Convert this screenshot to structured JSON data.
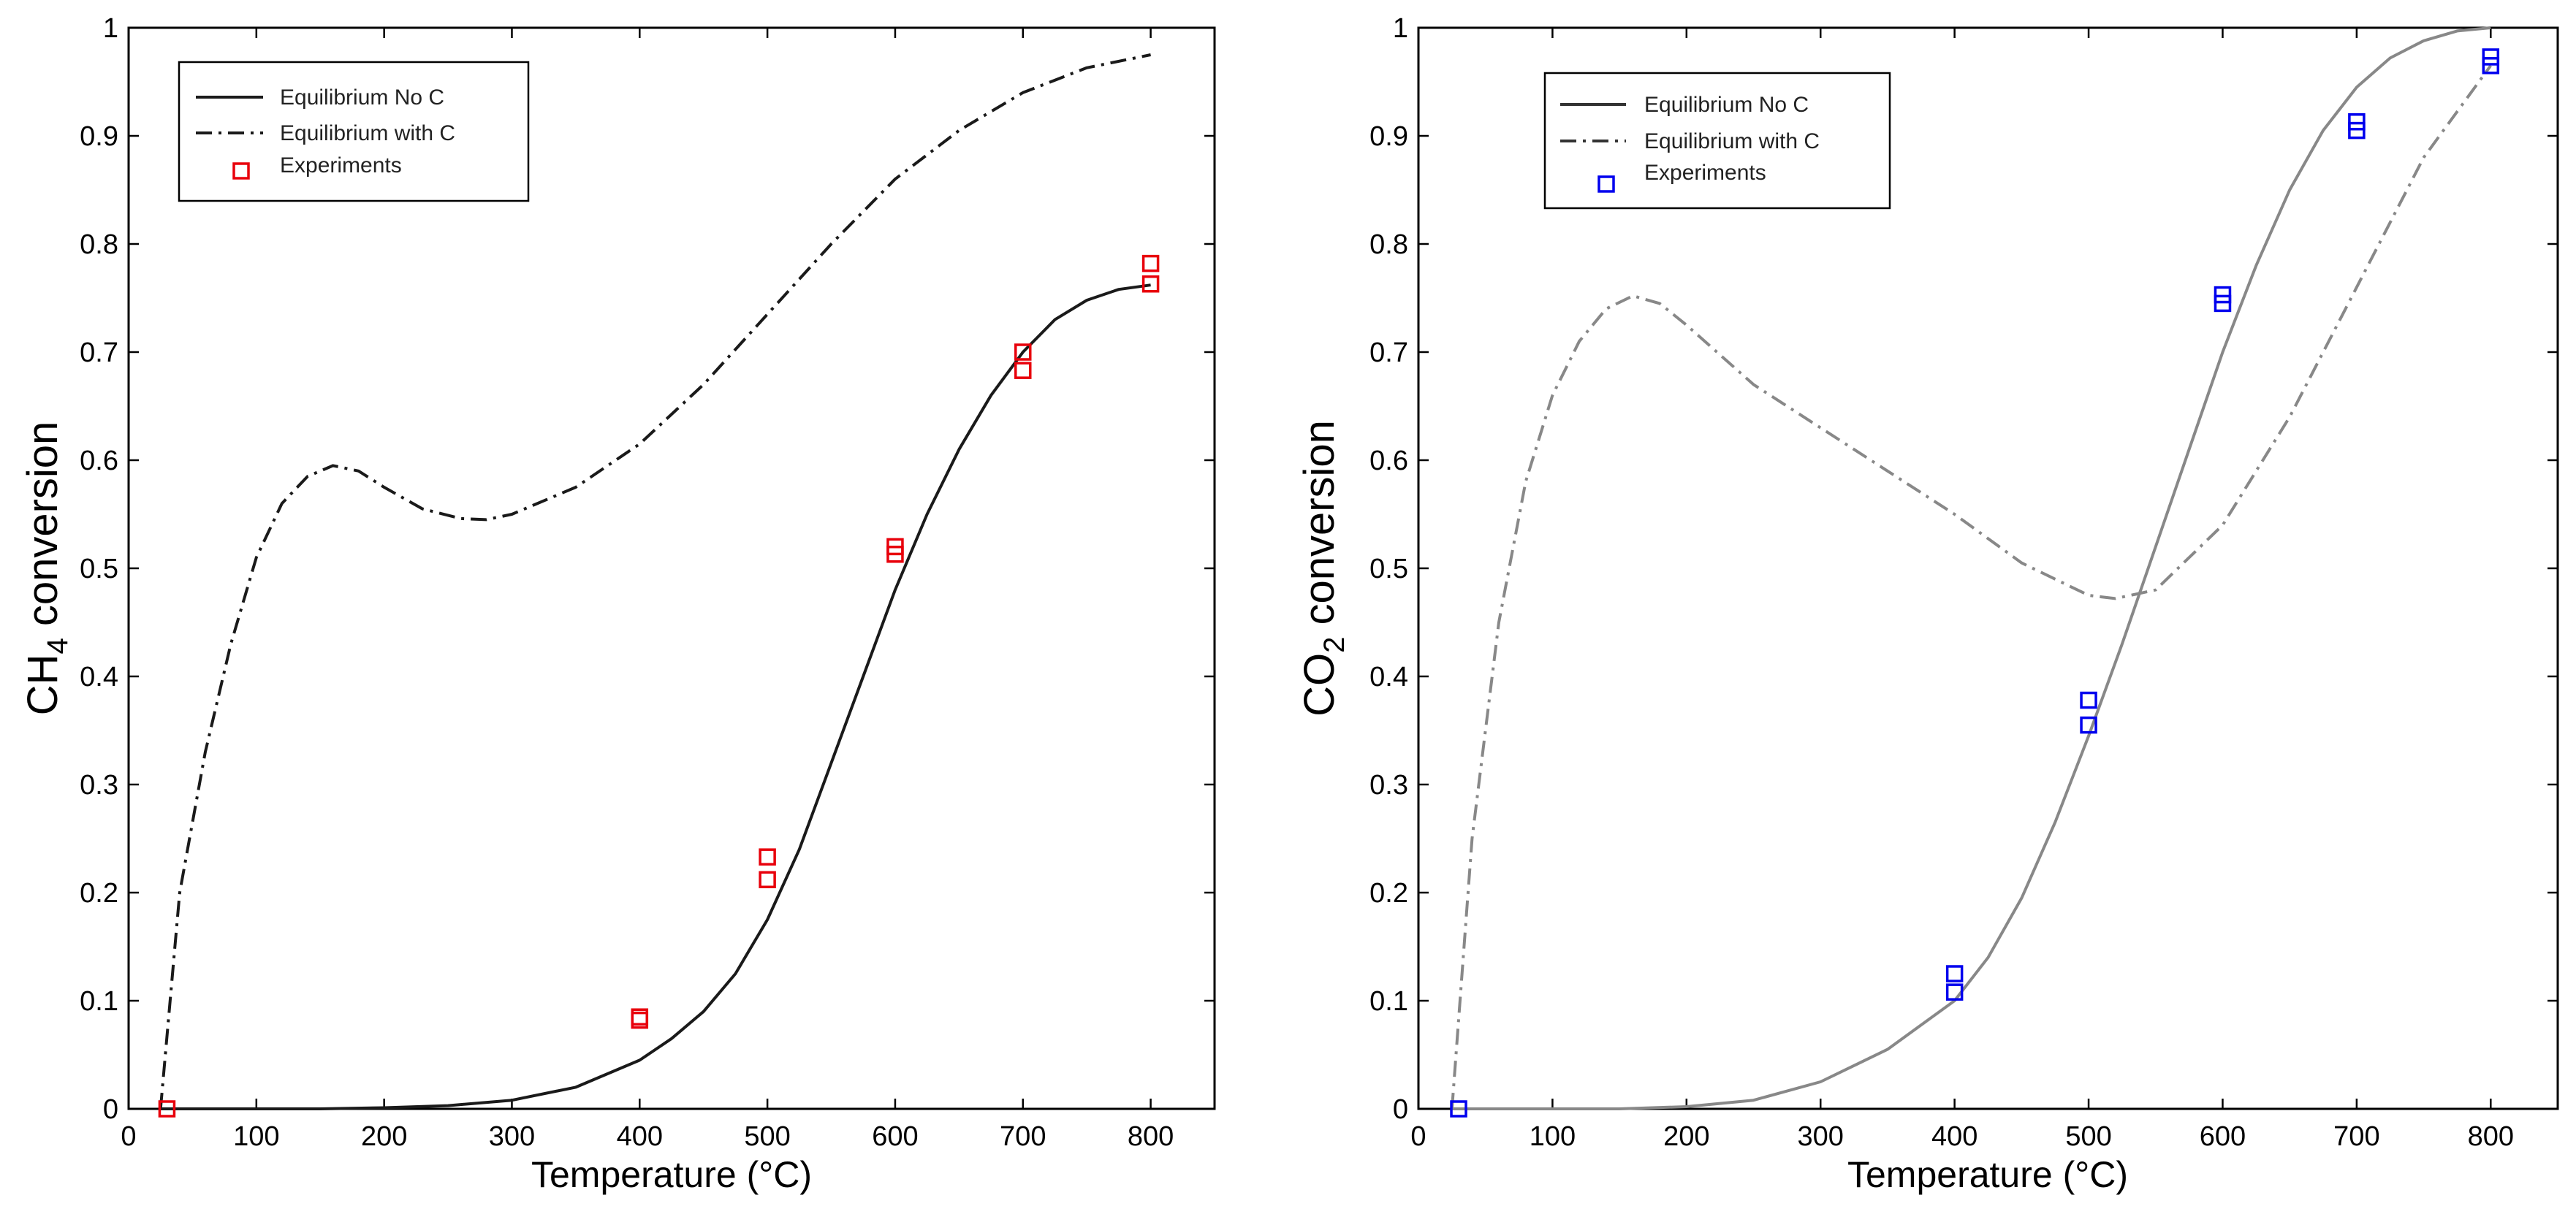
{
  "chart_data": [
    {
      "type": "line",
      "panel": "left",
      "title": "",
      "xlabel": "Temperature (°C)",
      "ylabel_main": "CH",
      "ylabel_sub": "4",
      "ylabel_rest": " conversion",
      "xlim": [
        0,
        850
      ],
      "ylim": [
        0,
        1
      ],
      "xticks": [
        "0",
        "100",
        "200",
        "300",
        "400",
        "500",
        "600",
        "700",
        "800"
      ],
      "yticks": [
        "0",
        "0.1",
        "0.2",
        "0.3",
        "0.4",
        "0.5",
        "0.6",
        "0.7",
        "0.8",
        "0.9",
        "1"
      ],
      "grid": false,
      "legend": [
        "Equilibrium No C",
        "Equilibrium with C",
        "Experiments"
      ],
      "legend_placement": "top-left",
      "marker_color": "#e8000b",
      "series": [
        {
          "name": "Equilibrium No C",
          "style": "solid",
          "color": "#1a1a1a",
          "x": [
            25,
            100,
            150,
            200,
            250,
            300,
            350,
            400,
            425,
            450,
            475,
            500,
            525,
            550,
            575,
            600,
            625,
            650,
            675,
            700,
            725,
            750,
            775,
            800
          ],
          "y": [
            0,
            0,
            0,
            0.001,
            0.003,
            0.008,
            0.02,
            0.045,
            0.065,
            0.09,
            0.125,
            0.175,
            0.24,
            0.32,
            0.4,
            0.48,
            0.55,
            0.61,
            0.66,
            0.7,
            0.73,
            0.748,
            0.758,
            0.762
          ]
        },
        {
          "name": "Equilibrium with C",
          "style": "dashdot",
          "color": "#1a1a1a",
          "x": [
            25,
            40,
            60,
            80,
            100,
            120,
            140,
            160,
            180,
            200,
            230,
            260,
            280,
            300,
            350,
            400,
            450,
            500,
            550,
            600,
            650,
            700,
            750,
            800
          ],
          "y": [
            0,
            0.2,
            0.33,
            0.43,
            0.51,
            0.56,
            0.585,
            0.595,
            0.59,
            0.575,
            0.555,
            0.546,
            0.545,
            0.55,
            0.575,
            0.615,
            0.67,
            0.735,
            0.8,
            0.86,
            0.905,
            0.94,
            0.963,
            0.975
          ]
        },
        {
          "name": "Experiments",
          "style": "markers",
          "x": [
            30,
            400,
            400,
            500,
            500,
            600,
            600,
            700,
            700,
            800,
            800
          ],
          "y": [
            0,
            0.082,
            0.085,
            0.212,
            0.233,
            0.513,
            0.52,
            0.683,
            0.7,
            0.763,
            0.782
          ]
        }
      ]
    },
    {
      "type": "line",
      "panel": "right",
      "title": "",
      "xlabel": "Temperature (°C)",
      "ylabel_main": "CO",
      "ylabel_sub": "2",
      "ylabel_rest": " conversion",
      "xlim": [
        0,
        850
      ],
      "ylim": [
        0,
        1
      ],
      "xticks": [
        "0",
        "100",
        "200",
        "300",
        "400",
        "500",
        "600",
        "700",
        "800"
      ],
      "yticks": [
        "0",
        "0.1",
        "0.2",
        "0.3",
        "0.4",
        "0.5",
        "0.6",
        "0.7",
        "0.8",
        "0.9",
        "1"
      ],
      "grid": false,
      "legend": [
        "Equilibrium No C",
        "Equilibrium with C",
        "Experiments"
      ],
      "legend_placement": "top-left",
      "marker_color": "#0000ee",
      "series": [
        {
          "name": "Equilibrium No C",
          "style": "solid",
          "color": "#888888",
          "x": [
            25,
            100,
            150,
            200,
            250,
            300,
            350,
            400,
            425,
            450,
            475,
            500,
            525,
            550,
            575,
            600,
            625,
            650,
            675,
            700,
            725,
            750,
            775,
            800
          ],
          "y": [
            0,
            0,
            0,
            0.002,
            0.008,
            0.025,
            0.055,
            0.1,
            0.14,
            0.195,
            0.265,
            0.345,
            0.43,
            0.52,
            0.61,
            0.7,
            0.78,
            0.85,
            0.905,
            0.945,
            0.972,
            0.988,
            0.997,
            1.0
          ]
        },
        {
          "name": "Equilibrium with C",
          "style": "dashdot",
          "color": "#888888",
          "x": [
            25,
            40,
            60,
            80,
            100,
            120,
            140,
            160,
            180,
            200,
            250,
            300,
            350,
            400,
            450,
            500,
            520,
            550,
            600,
            650,
            700,
            750,
            800
          ],
          "y": [
            0,
            0.25,
            0.45,
            0.58,
            0.66,
            0.71,
            0.74,
            0.752,
            0.745,
            0.725,
            0.67,
            0.63,
            0.59,
            0.55,
            0.505,
            0.475,
            0.472,
            0.48,
            0.54,
            0.64,
            0.76,
            0.88,
            0.965
          ]
        },
        {
          "name": "Experiments",
          "style": "markers",
          "x": [
            30,
            400,
            400,
            500,
            500,
            600,
            600,
            700,
            700,
            800,
            800
          ],
          "y": [
            0,
            0.108,
            0.125,
            0.355,
            0.378,
            0.745,
            0.753,
            0.905,
            0.913,
            0.965,
            0.973
          ]
        }
      ]
    }
  ]
}
